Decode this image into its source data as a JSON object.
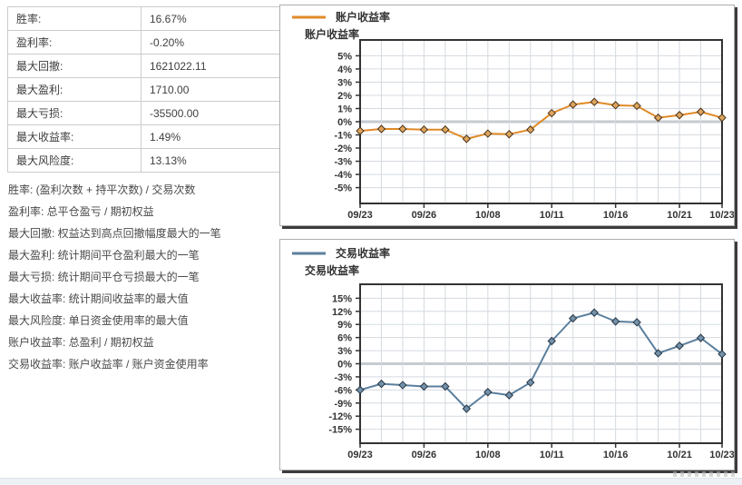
{
  "stats_table": {
    "rows": [
      {
        "label": "胜率:",
        "value": "16.67%"
      },
      {
        "label": "盈利率:",
        "value": "-0.20%"
      },
      {
        "label": "最大回撤:",
        "value": "1621022.11"
      },
      {
        "label": "最大盈利:",
        "value": "1710.00"
      },
      {
        "label": "最大亏损:",
        "value": "-35500.00"
      },
      {
        "label": "最大收益率:",
        "value": "1.49%"
      },
      {
        "label": "最大风险度:",
        "value": "13.13%"
      }
    ]
  },
  "definitions": [
    "胜率: (盈利次数 + 持平次数) / 交易次数",
    "盈利率: 总平仓盈亏 / 期初权益",
    "最大回撤: 权益达到高点回撤幅度最大的一笔",
    "最大盈利: 统计期间平仓盈利最大的一笔",
    "最大亏损: 统计期间平仓亏损最大的一笔",
    "最大收益率: 统计期间收益率的最大值",
    "最大风险度: 单日资金使用率的最大值",
    "账户收益率: 总盈利 / 期初权益",
    "交易收益率: 账户收益率 / 账户资金使用率"
  ],
  "chart_data": [
    {
      "type": "line",
      "legend": "账户收益率",
      "axis_title": "账户收益率",
      "line_color": "#e08a28",
      "marker_fill": "#dda45e",
      "marker_stroke": "#4d3318",
      "y_unit": "%",
      "y_ticks": [
        5,
        4,
        3,
        2,
        1,
        0,
        -1,
        -2,
        -3,
        -4,
        -5
      ],
      "ylim": [
        -6.2,
        6.2
      ],
      "x_labels": [
        {
          "i": 0,
          "t": "09/23"
        },
        {
          "i": 3,
          "t": "09/26"
        },
        {
          "i": 6,
          "t": "10/08"
        },
        {
          "i": 9,
          "t": "10/11"
        },
        {
          "i": 12,
          "t": "10/16"
        },
        {
          "i": 15,
          "t": "10/21"
        },
        {
          "i": 17,
          "t": "10/23"
        }
      ],
      "values": [
        -0.7,
        -0.55,
        -0.55,
        -0.6,
        -0.6,
        -1.3,
        -0.9,
        -0.95,
        -0.6,
        0.65,
        1.3,
        1.5,
        1.25,
        1.2,
        0.3,
        0.5,
        0.75,
        0.3
      ],
      "grid": true,
      "legend_position": "top-left"
    },
    {
      "type": "line",
      "legend": "交易收益率",
      "axis_title": "交易收益率",
      "line_color": "#5b7f9d",
      "marker_fill": "#7391a9",
      "marker_stroke": "#273746",
      "y_unit": "%",
      "y_ticks": [
        15,
        12,
        9,
        6,
        3,
        0,
        -3,
        -6,
        -9,
        -12,
        -15
      ],
      "ylim": [
        -18.2,
        18.2
      ],
      "x_labels": [
        {
          "i": 0,
          "t": "09/23"
        },
        {
          "i": 3,
          "t": "09/26"
        },
        {
          "i": 6,
          "t": "10/08"
        },
        {
          "i": 9,
          "t": "10/11"
        },
        {
          "i": 12,
          "t": "10/16"
        },
        {
          "i": 15,
          "t": "10/21"
        },
        {
          "i": 17,
          "t": "10/23"
        }
      ],
      "values": [
        -6.0,
        -4.6,
        -4.9,
        -5.2,
        -5.2,
        -10.3,
        -6.5,
        -7.2,
        -4.3,
        5.2,
        10.4,
        11.7,
        9.7,
        9.5,
        2.4,
        4.1,
        5.9,
        2.2
      ],
      "grid": true,
      "legend_position": "top-left"
    }
  ],
  "colors": {
    "plot_border": "#333333",
    "grid_line": "#d4dae0",
    "zero_line": "#c6cbd0",
    "tick_text": "#333333",
    "panel_shadow": "#3c3c3c"
  }
}
